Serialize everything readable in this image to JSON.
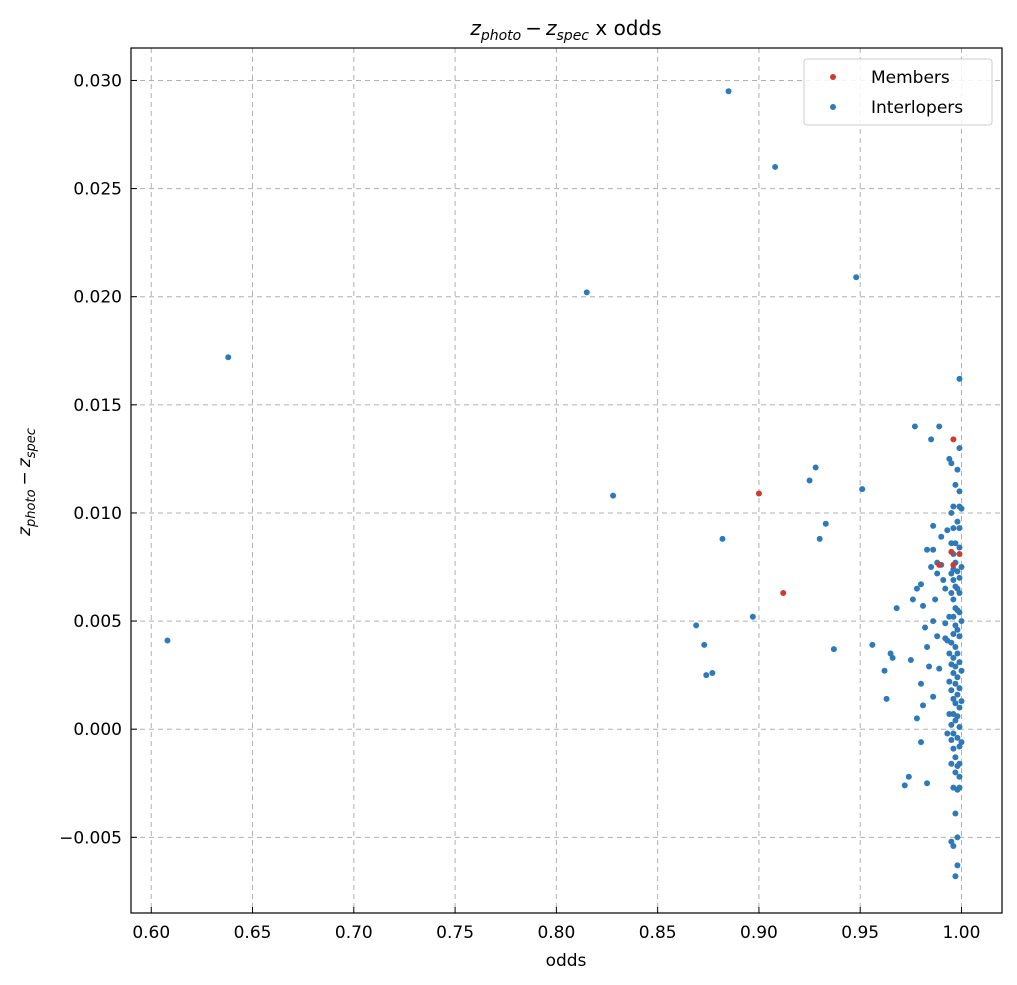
{
  "chart_data": {
    "type": "scatter",
    "title_math": "z",
    "title_sub1": "photo",
    "title_minus": "−",
    "title_sub2": "spec",
    "title_suffix": " x odds",
    "xlabel": "odds",
    "ylabel_math": "z",
    "ylabel_sub1": "photo",
    "ylabel_minus": "−",
    "ylabel_sub2": "spec",
    "xlim": [
      0.59,
      1.02
    ],
    "ylim": [
      -0.0085,
      0.0315
    ],
    "xticks": [
      0.6,
      0.65,
      0.7,
      0.75,
      0.8,
      0.85,
      0.9,
      0.95,
      1.0
    ],
    "xtick_labels": [
      "0.60",
      "0.65",
      "0.70",
      "0.75",
      "0.80",
      "0.85",
      "0.90",
      "0.95",
      "1.00"
    ],
    "yticks": [
      -0.005,
      0.0,
      0.005,
      0.01,
      0.015,
      0.02,
      0.025,
      0.03
    ],
    "ytick_labels": [
      "−0.005",
      "0.000",
      "0.005",
      "0.010",
      "0.015",
      "0.020",
      "0.025",
      "0.030"
    ],
    "grid": true,
    "legend_position": "top-right",
    "series": [
      {
        "name": "Interlopers",
        "color": "#2e7ab8",
        "points": [
          [
            0.608,
            0.0041
          ],
          [
            0.638,
            0.0172
          ],
          [
            0.815,
            0.0202
          ],
          [
            0.828,
            0.0108
          ],
          [
            0.885,
            0.0295
          ],
          [
            0.908,
            0.026
          ],
          [
            0.948,
            0.0209
          ],
          [
            0.882,
            0.0088
          ],
          [
            0.869,
            0.0048
          ],
          [
            0.873,
            0.0039
          ],
          [
            0.874,
            0.0025
          ],
          [
            0.877,
            0.0026
          ],
          [
            0.897,
            0.0052
          ],
          [
            0.925,
            0.0115
          ],
          [
            0.928,
            0.0121
          ],
          [
            0.93,
            0.0088
          ],
          [
            0.933,
            0.0095
          ],
          [
            0.937,
            0.0037
          ],
          [
            0.951,
            0.0111
          ],
          [
            0.956,
            0.0039
          ],
          [
            0.962,
            0.0027
          ],
          [
            0.963,
            0.0014
          ],
          [
            0.965,
            0.0035
          ],
          [
            0.966,
            0.0033
          ],
          [
            0.968,
            0.0056
          ],
          [
            0.972,
            -0.0026
          ],
          [
            0.974,
            -0.0022
          ],
          [
            0.975,
            0.0032
          ],
          [
            0.976,
            0.006
          ],
          [
            0.977,
            0.014
          ],
          [
            0.978,
            0.0065
          ],
          [
            0.978,
            0.0005
          ],
          [
            0.98,
            0.0067
          ],
          [
            0.98,
            0.0021
          ],
          [
            0.98,
            -0.0006
          ],
          [
            0.981,
            0.0057
          ],
          [
            0.981,
            0.0011
          ],
          [
            0.982,
            0.0047
          ],
          [
            0.983,
            0.0083
          ],
          [
            0.983,
            0.0038
          ],
          [
            0.983,
            -0.0025
          ],
          [
            0.984,
            0.0029
          ],
          [
            0.985,
            0.0075
          ],
          [
            0.985,
            0.0134
          ],
          [
            0.986,
            0.0094
          ],
          [
            0.986,
            0.0083
          ],
          [
            0.986,
            0.005
          ],
          [
            0.986,
            0.0015
          ],
          [
            0.987,
            0.006
          ],
          [
            0.988,
            0.0077
          ],
          [
            0.988,
            0.0072
          ],
          [
            0.988,
            0.0043
          ],
          [
            0.989,
            0.014
          ],
          [
            0.989,
            0.0028
          ],
          [
            0.99,
            0.0076
          ],
          [
            0.99,
            0.0089
          ],
          [
            0.991,
            0.0069
          ],
          [
            0.992,
            0.0065
          ],
          [
            0.992,
            0.0049
          ],
          [
            0.992,
            0.0042
          ],
          [
            0.993,
            0.0041
          ],
          [
            0.993,
            -0.0002
          ],
          [
            0.993,
            0.0092
          ],
          [
            0.994,
            0.0125
          ],
          [
            0.994,
            0.0052
          ],
          [
            0.994,
            0.0035
          ],
          [
            0.994,
            0.0022
          ],
          [
            0.994,
            0.0007
          ],
          [
            0.995,
            0.0123
          ],
          [
            0.995,
            0.01
          ],
          [
            0.995,
            0.0086
          ],
          [
            0.995,
            0.0072
          ],
          [
            0.995,
            0.0063
          ],
          [
            0.995,
            0.004
          ],
          [
            0.995,
            0.003
          ],
          [
            0.995,
            0.0018
          ],
          [
            0.995,
            0.0002
          ],
          [
            0.995,
            -0.0005
          ],
          [
            0.995,
            -0.0016
          ],
          [
            0.995,
            -0.0052
          ],
          [
            0.996,
            0.0103
          ],
          [
            0.996,
            0.0093
          ],
          [
            0.996,
            0.0081
          ],
          [
            0.996,
            0.0074
          ],
          [
            0.996,
            0.0069
          ],
          [
            0.996,
            0.006
          ],
          [
            0.996,
            0.0052
          ],
          [
            0.996,
            0.0044
          ],
          [
            0.996,
            0.0033
          ],
          [
            0.996,
            0.0026
          ],
          [
            0.996,
            0.0014
          ],
          [
            0.996,
            0.0007
          ],
          [
            0.996,
            -0.0002
          ],
          [
            0.996,
            -0.0009
          ],
          [
            0.996,
            -0.0027
          ],
          [
            0.996,
            -0.0054
          ],
          [
            0.997,
            0.0113
          ],
          [
            0.997,
            0.0086
          ],
          [
            0.997,
            0.0077
          ],
          [
            0.997,
            0.0066
          ],
          [
            0.997,
            0.0056
          ],
          [
            0.997,
            0.0048
          ],
          [
            0.997,
            0.0038
          ],
          [
            0.997,
            0.0029
          ],
          [
            0.997,
            0.0021
          ],
          [
            0.997,
            0.0012
          ],
          [
            0.997,
            0.0004
          ],
          [
            0.997,
            -0.0013
          ],
          [
            0.997,
            -0.002
          ],
          [
            0.997,
            -0.0039
          ],
          [
            0.997,
            -0.0068
          ],
          [
            0.998,
            0.012
          ],
          [
            0.998,
            0.0096
          ],
          [
            0.998,
            0.0073
          ],
          [
            0.998,
            0.0065
          ],
          [
            0.998,
            0.0055
          ],
          [
            0.998,
            0.0046
          ],
          [
            0.998,
            0.0035
          ],
          [
            0.998,
            0.0024
          ],
          [
            0.998,
            0.0016
          ],
          [
            0.998,
            0.0006
          ],
          [
            0.998,
            -0.0004
          ],
          [
            0.998,
            -0.0017
          ],
          [
            0.998,
            -0.0028
          ],
          [
            0.998,
            -0.005
          ],
          [
            0.998,
            -0.0063
          ],
          [
            0.999,
            0.0162
          ],
          [
            0.999,
            0.013
          ],
          [
            0.999,
            0.011
          ],
          [
            0.999,
            0.0103
          ],
          [
            0.999,
            0.0093
          ],
          [
            0.999,
            0.0084
          ],
          [
            0.999,
            0.007
          ],
          [
            0.999,
            0.0063
          ],
          [
            0.999,
            0.0054
          ],
          [
            0.999,
            0.0043
          ],
          [
            0.999,
            0.0031
          ],
          [
            0.999,
            0.0019
          ],
          [
            0.999,
            0.001
          ],
          [
            0.999,
            0.0001
          ],
          [
            0.999,
            -0.0008
          ],
          [
            0.999,
            -0.0016
          ],
          [
            0.999,
            -0.0022
          ],
          [
            0.999,
            -0.0027
          ],
          [
            1.0,
            0.0102
          ],
          [
            1.0,
            0.0075
          ],
          [
            1.0,
            0.005
          ],
          [
            1.0,
            0.0027
          ],
          [
            1.0,
            0.0013
          ],
          [
            1.0,
            -0.0006
          ]
        ]
      },
      {
        "name": "Members",
        "color": "#d13a2c",
        "points": [
          [
            0.9,
            0.0109
          ],
          [
            0.912,
            0.0063
          ],
          [
            0.996,
            0.0134
          ],
          [
            0.995,
            0.0082
          ],
          [
            0.999,
            0.0081
          ],
          [
            0.989,
            0.0076
          ],
          [
            0.996,
            0.0076
          ]
        ]
      }
    ],
    "legend_order": [
      "Members",
      "Interlopers"
    ]
  }
}
